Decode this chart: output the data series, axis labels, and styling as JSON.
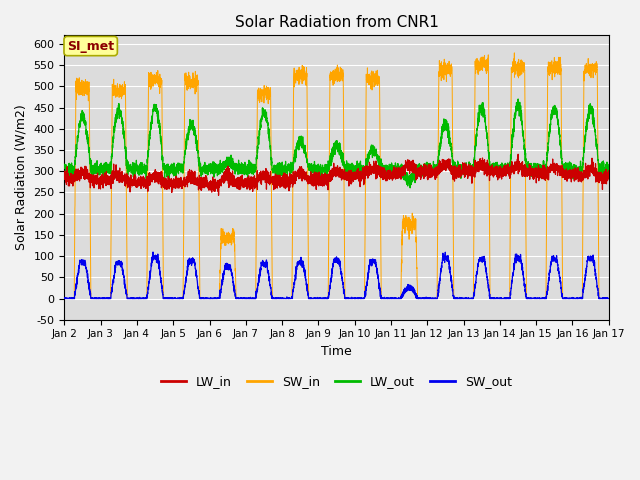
{
  "title": "Solar Radiation from CNR1",
  "xlabel": "Time",
  "ylabel": "Solar Radiation (W/m2)",
  "ylim": [
    -50,
    620
  ],
  "annotation_text": "SI_met",
  "annotation_color": "#8B0000",
  "annotation_bg": "#FFFF99",
  "annotation_edge": "#AAAA00",
  "colors": {
    "LW_in": "#CC0000",
    "SW_in": "#FFA500",
    "LW_out": "#00BB00",
    "SW_out": "#0000EE"
  },
  "bg_color": "#DCDCDC",
  "fig_color": "#F2F2F2",
  "grid_color": "#FFFFFF"
}
